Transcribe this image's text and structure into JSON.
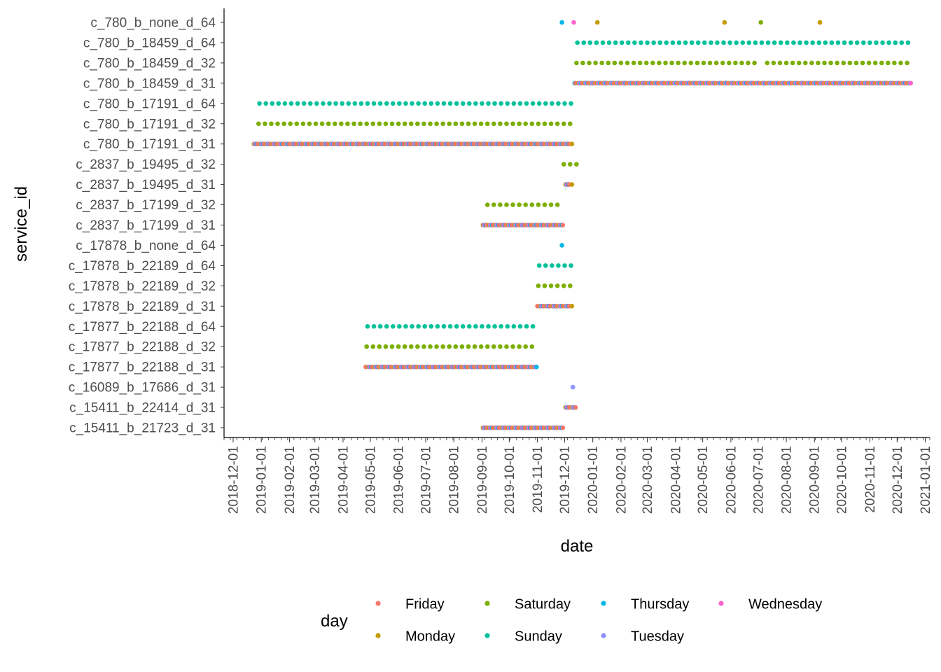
{
  "chart_data": {
    "type": "scatter",
    "title": "",
    "xlabel": "date",
    "ylabel": "service_id",
    "x_type": "date",
    "xlim": [
      "2018-11-21",
      "2021-01-06"
    ],
    "x_ticks": [
      "2018-12-01",
      "2019-01-01",
      "2019-02-01",
      "2019-03-01",
      "2019-04-01",
      "2019-05-01",
      "2019-06-01",
      "2019-07-01",
      "2019-08-01",
      "2019-09-01",
      "2019-10-01",
      "2019-11-01",
      "2019-12-01",
      "2020-01-01",
      "2020-02-01",
      "2020-03-01",
      "2020-04-01",
      "2020-05-01",
      "2020-06-01",
      "2020-07-01",
      "2020-08-01",
      "2020-09-01",
      "2020-10-01",
      "2020-11-01",
      "2020-12-01",
      "2021-01-01"
    ],
    "categories": [
      "c_780_b_none_d_64",
      "c_780_b_18459_d_64",
      "c_780_b_18459_d_32",
      "c_780_b_18459_d_31",
      "c_780_b_17191_d_64",
      "c_780_b_17191_d_32",
      "c_780_b_17191_d_31",
      "c_2837_b_19495_d_32",
      "c_2837_b_19495_d_31",
      "c_2837_b_17199_d_32",
      "c_2837_b_17199_d_31",
      "c_17878_b_none_d_64",
      "c_17878_b_22189_d_64",
      "c_17878_b_22189_d_32",
      "c_17878_b_22189_d_31",
      "c_17877_b_22188_d_64",
      "c_17877_b_22188_d_32",
      "c_17877_b_22188_d_31",
      "c_16089_b_17686_d_31",
      "c_15411_b_22414_d_31",
      "c_15411_b_21723_d_31"
    ],
    "legend": {
      "title": "day",
      "position": "bottom",
      "items": [
        {
          "name": "Friday",
          "color": "#F8766D"
        },
        {
          "name": "Saturday",
          "color": "#7CAE00"
        },
        {
          "name": "Thursday",
          "color": "#00B8E7"
        },
        {
          "name": "Wednesday",
          "color": "#FF61CC"
        },
        {
          "name": "Monday",
          "color": "#C49A00"
        },
        {
          "name": "Sunday",
          "color": "#00C19A"
        },
        {
          "name": "Tuesday",
          "color": "#8B93FF"
        }
      ]
    },
    "grid": false,
    "points": [
      {
        "service": "c_780_b_none_d_64",
        "date": "2019-11-28",
        "day": "Thursday"
      },
      {
        "service": "c_780_b_none_d_64",
        "date": "2019-12-11",
        "day": "Wednesday"
      },
      {
        "service": "c_780_b_none_d_64",
        "date": "2020-01-06",
        "day": "Monday"
      },
      {
        "service": "c_780_b_none_d_64",
        "date": "2020-05-25",
        "day": "Monday"
      },
      {
        "service": "c_780_b_none_d_64",
        "date": "2020-07-04",
        "day": "Saturday"
      },
      {
        "service": "c_780_b_none_d_64",
        "date": "2020-09-07",
        "day": "Monday"
      }
    ],
    "runs": [
      {
        "service": "c_780_b_18459_d_64",
        "start": "2019-12-15",
        "end": "2020-12-13",
        "pattern": "weekly",
        "days": [
          "Sunday"
        ]
      },
      {
        "service": "c_780_b_18459_d_32",
        "start": "2019-12-14",
        "end": "2020-06-27",
        "pattern": "weekly",
        "days": [
          "Saturday"
        ]
      },
      {
        "service": "c_780_b_18459_d_32",
        "start": "2020-07-11",
        "end": "2020-12-12",
        "pattern": "weekly",
        "days": [
          "Saturday"
        ]
      },
      {
        "service": "c_780_b_18459_d_31",
        "start": "2019-12-12",
        "end": "2020-12-16",
        "pattern": "weekdays"
      },
      {
        "service": "c_780_b_17191_d_64",
        "start": "2018-12-30",
        "end": "2019-12-08",
        "pattern": "weekly",
        "days": [
          "Sunday"
        ]
      },
      {
        "service": "c_780_b_17191_d_32",
        "start": "2018-12-29",
        "end": "2019-12-07",
        "pattern": "weekly",
        "days": [
          "Saturday"
        ]
      },
      {
        "service": "c_780_b_17191_d_31",
        "start": "2018-12-24",
        "end": "2019-12-09",
        "pattern": "weekdays"
      },
      {
        "service": "c_2837_b_19495_d_32",
        "start": "2019-11-30",
        "end": "2019-12-14",
        "pattern": "weekly",
        "days": [
          "Saturday"
        ]
      },
      {
        "service": "c_2837_b_19495_d_31",
        "start": "2019-11-30",
        "end": "2019-12-09",
        "pattern": "weekdays"
      },
      {
        "service": "c_2837_b_17199_d_32",
        "start": "2019-09-07",
        "end": "2019-11-23",
        "pattern": "weekly",
        "days": [
          "Saturday"
        ]
      },
      {
        "service": "c_2837_b_17199_d_31",
        "start": "2019-09-02",
        "end": "2019-11-29",
        "pattern": "weekdays"
      },
      {
        "service": "c_17878_b_none_d_64",
        "start": "2019-11-28",
        "end": "2019-11-28",
        "pattern": "single",
        "days": [
          "Thursday"
        ]
      },
      {
        "service": "c_17878_b_22189_d_64",
        "start": "2019-11-03",
        "end": "2019-12-08",
        "pattern": "weekly",
        "days": [
          "Sunday"
        ]
      },
      {
        "service": "c_17878_b_22189_d_32",
        "start": "2019-11-02",
        "end": "2019-12-07",
        "pattern": "weekly",
        "days": [
          "Saturday"
        ]
      },
      {
        "service": "c_17878_b_22189_d_31",
        "start": "2019-11-01",
        "end": "2019-12-09",
        "pattern": "weekdays"
      },
      {
        "service": "c_17877_b_22188_d_64",
        "start": "2019-04-28",
        "end": "2019-10-27",
        "pattern": "weekly",
        "days": [
          "Sunday"
        ]
      },
      {
        "service": "c_17877_b_22188_d_32",
        "start": "2019-04-27",
        "end": "2019-10-26",
        "pattern": "weekly",
        "days": [
          "Saturday"
        ]
      },
      {
        "service": "c_17877_b_22188_d_31",
        "start": "2019-04-26",
        "end": "2019-10-31",
        "pattern": "weekdays"
      },
      {
        "service": "c_16089_b_17686_d_31",
        "start": "2019-12-10",
        "end": "2019-12-10",
        "pattern": "single",
        "days": [
          "Tuesday"
        ]
      },
      {
        "service": "c_15411_b_22414_d_31",
        "start": "2019-12-02",
        "end": "2019-12-13",
        "pattern": "weekdays"
      },
      {
        "service": "c_15411_b_21723_d_31",
        "start": "2019-09-02",
        "end": "2019-11-29",
        "pattern": "weekdays"
      }
    ]
  }
}
